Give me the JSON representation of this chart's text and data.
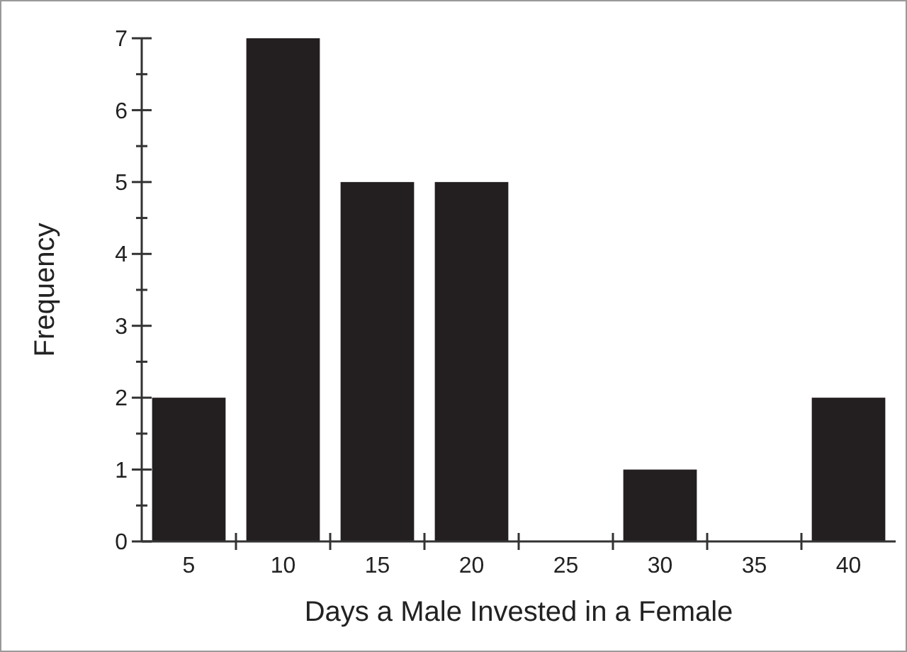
{
  "chart_data": {
    "type": "bar",
    "xlabel": "Days a Male Invested in a Female",
    "ylabel": "Frequency",
    "categories": [
      "5",
      "10",
      "15",
      "20",
      "25",
      "30",
      "35",
      "40"
    ],
    "values": [
      2,
      7,
      5,
      5,
      0,
      1,
      0,
      2
    ],
    "color": "#231f20",
    "ylim": [
      0,
      7
    ],
    "yticks": [
      0,
      {
        "value": 0.5,
        "label": null
      },
      1,
      {
        "value": 1.5,
        "label": null
      },
      2,
      {
        "value": 2.5,
        "label": null
      },
      3,
      {
        "value": 3.5,
        "label": null
      },
      4,
      {
        "value": 4.5,
        "label": null
      },
      5,
      {
        "value": 5.5,
        "label": null
      },
      6,
      {
        "value": 6.5,
        "label": null
      },
      7
    ],
    "grid": false
  }
}
